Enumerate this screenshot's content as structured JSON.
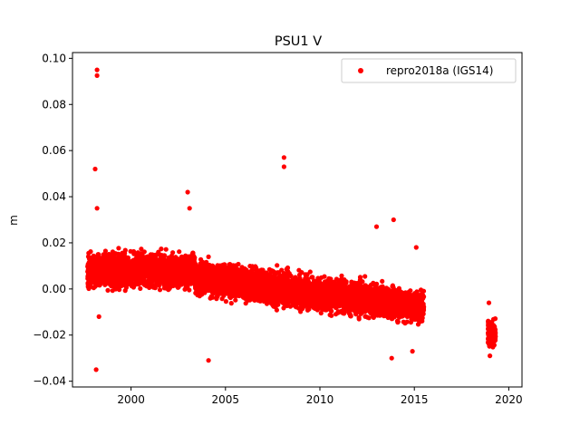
{
  "chart_data": {
    "type": "scatter",
    "title": "PSU1 V",
    "xlabel": "",
    "ylabel": "m",
    "xlim": [
      1996.9,
      2020.7
    ],
    "ylim": [
      -0.0425,
      0.1025
    ],
    "xticks": [
      2000,
      2005,
      2010,
      2015,
      2020
    ],
    "xtick_labels": [
      "2000",
      "2005",
      "2010",
      "2015",
      "2020"
    ],
    "yticks": [
      -0.04,
      -0.02,
      0.0,
      0.02,
      0.04,
      0.06,
      0.08,
      0.1
    ],
    "ytick_labels": [
      "−0.04",
      "−0.02",
      "0.00",
      "0.02",
      "0.04",
      "0.06",
      "0.08",
      "0.10"
    ],
    "grid": false,
    "legend_position": "top-right",
    "marker_color": "#ff0000",
    "series": [
      {
        "name": "repro2018a (IGS14)",
        "trend_segments": [
          {
            "x_start": 1997.7,
            "x_end": 2003.4,
            "y_mean": 0.008,
            "spread": 0.006
          },
          {
            "x_start": 2003.4,
            "x_end": 2015.5,
            "y_mean_start": 0.005,
            "y_mean_end": -0.008,
            "spread": 0.006
          },
          {
            "x_start": 2018.9,
            "x_end": 2019.3,
            "y_mean": -0.019,
            "spread": 0.005
          }
        ],
        "outliers": [
          {
            "x": 1998.2,
            "y": 0.095
          },
          {
            "x": 1998.2,
            "y": 0.0925
          },
          {
            "x": 1998.1,
            "y": 0.052
          },
          {
            "x": 1998.2,
            "y": 0.035
          },
          {
            "x": 1998.15,
            "y": -0.035
          },
          {
            "x": 1998.3,
            "y": -0.012
          },
          {
            "x": 2003.0,
            "y": 0.042
          },
          {
            "x": 2003.1,
            "y": 0.035
          },
          {
            "x": 2004.1,
            "y": -0.031
          },
          {
            "x": 2008.1,
            "y": 0.057
          },
          {
            "x": 2008.1,
            "y": 0.053
          },
          {
            "x": 2013.0,
            "y": 0.027
          },
          {
            "x": 2013.9,
            "y": 0.03
          },
          {
            "x": 2015.1,
            "y": 0.018
          },
          {
            "x": 2013.8,
            "y": -0.03
          },
          {
            "x": 2014.9,
            "y": -0.027
          },
          {
            "x": 2019.0,
            "y": -0.029
          },
          {
            "x": 2018.95,
            "y": -0.006
          }
        ]
      }
    ]
  }
}
